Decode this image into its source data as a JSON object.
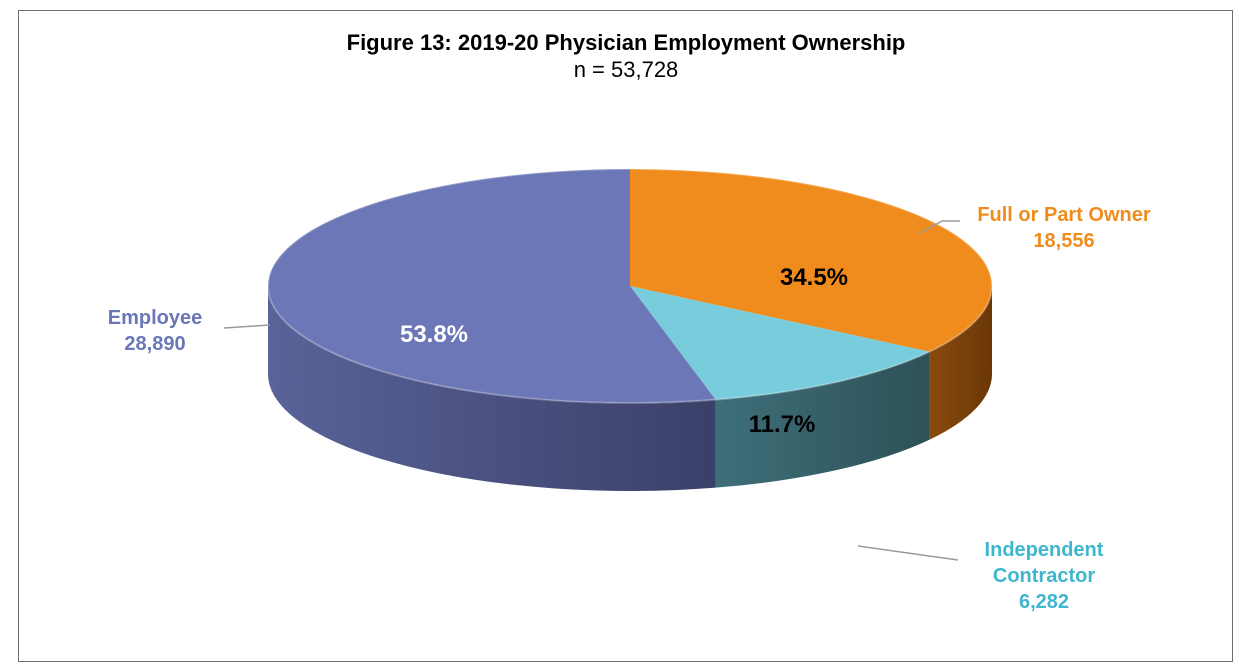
{
  "chart_data": {
    "type": "pie",
    "title": "Figure 13: 2019-20 Physician Employment Ownership",
    "subtitle": "n = 53,728",
    "slices": [
      {
        "label": "Full or Part Owner",
        "count": "18,556",
        "value": 34.5,
        "percent_label": "34.5%",
        "color": "#f08c1e",
        "text_color": "#000000"
      },
      {
        "label": "Independent Contractor",
        "count": "6,282",
        "value": 11.7,
        "percent_label": "11.7%",
        "color": "#78ccdc",
        "text_color": "#000000"
      },
      {
        "label": "Employee",
        "count": "28,890",
        "value": 53.8,
        "percent_label": "53.8%",
        "color": "#6b77b6",
        "text_color": "#ffffff"
      }
    ],
    "label_colors": {
      "Full or Part Owner": "#f08c1e",
      "Independent Contractor": "#3fb6cf",
      "Employee": "#6b77b6"
    }
  }
}
